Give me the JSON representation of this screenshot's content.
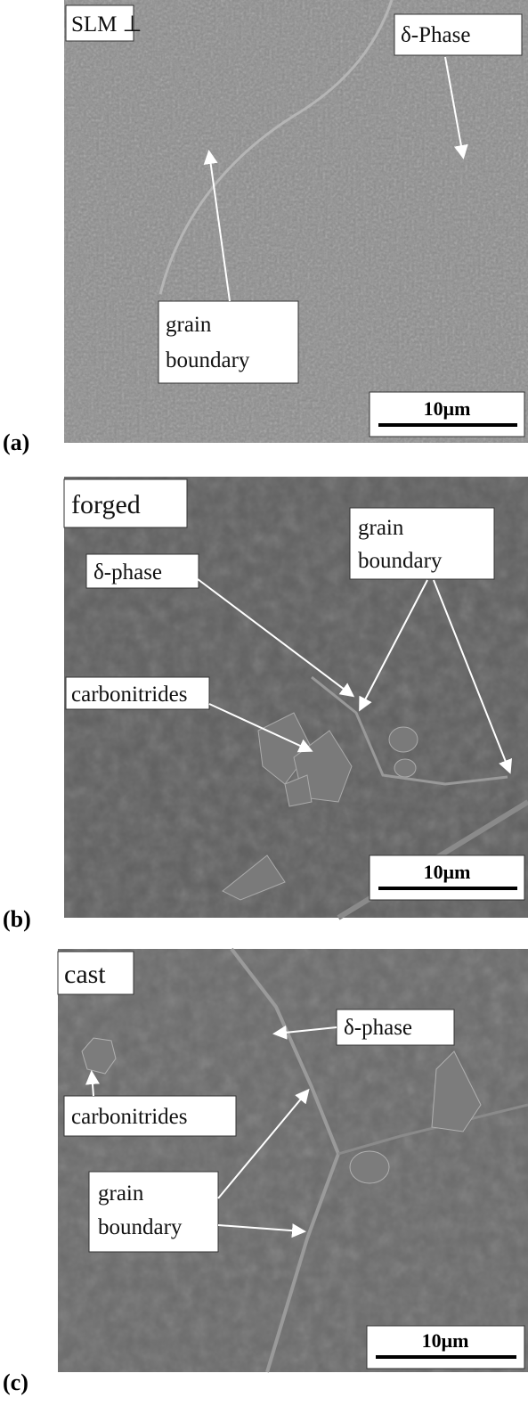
{
  "panels": [
    {
      "label": "(a)",
      "tag": "SLM ⊥",
      "annotations": [
        {
          "lines": [
            "δ-Phase"
          ]
        },
        {
          "lines": [
            "grain",
            "boundary"
          ]
        }
      ],
      "scale_bar": "10μm"
    },
    {
      "label": "(b)",
      "tag": "forged",
      "annotations": [
        {
          "lines": [
            "grain",
            "boundary"
          ]
        },
        {
          "lines": [
            "δ-phase"
          ]
        },
        {
          "lines": [
            "carbonitrides"
          ]
        }
      ],
      "scale_bar": "10μm"
    },
    {
      "label": "(c)",
      "tag": "cast",
      "annotations": [
        {
          "lines": [
            "δ-phase"
          ]
        },
        {
          "lines": [
            "carbonitrides"
          ]
        },
        {
          "lines": [
            "grain",
            "boundary"
          ]
        }
      ],
      "scale_bar": "10μm"
    }
  ]
}
